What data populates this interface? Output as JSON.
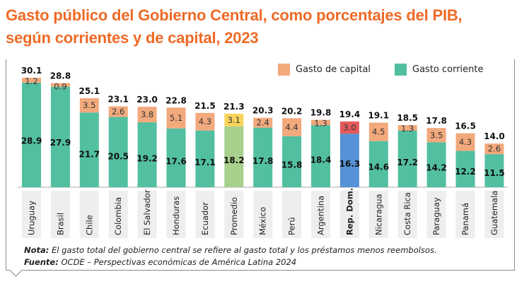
{
  "title_line1": "Gasto público del Gobierno Central, como porcentajes del PIB,",
  "title_line2": "según corrientes y de capital, 2023",
  "chart_data": {
    "type": "bar",
    "stacked": true,
    "categories": [
      "Uruguay",
      "Brasil",
      "Chile",
      "Colombia",
      "El Salvador",
      "Honduras",
      "Ecuador",
      "Promedio",
      "México",
      "Perú",
      "Argentina",
      "Rep. Dom.",
      "Nicaragua",
      "Costa Rica",
      "Paraguay",
      "Panamá",
      "Guatemala"
    ],
    "series": [
      {
        "name": "Gasto corriente",
        "color": "#52bfa0",
        "values": [
          28.9,
          27.9,
          21.7,
          20.5,
          19.2,
          17.6,
          17.1,
          18.2,
          17.8,
          15.8,
          18.4,
          16.3,
          14.6,
          17.2,
          14.2,
          12.2,
          11.5
        ]
      },
      {
        "name": "Gasto de capital",
        "color": "#f2a97c",
        "values": [
          1.2,
          0.9,
          3.5,
          2.6,
          3.8,
          5.1,
          4.3,
          3.1,
          2.4,
          4.4,
          1.3,
          3.0,
          4.5,
          1.3,
          3.5,
          4.3,
          2.6
        ]
      }
    ],
    "totals": [
      "30.1",
      "28.8",
      "25.1",
      "23.1",
      "23.0",
      "22.8",
      "21.5",
      "21.3",
      "20.3",
      "20.2",
      "19.8",
      "19.4",
      "19.1",
      "18.5",
      "17.8",
      "16.5",
      "14.0"
    ],
    "highlight": {
      "Promedio": {
        "current": "#a8d08d",
        "capital": "#f9d45c"
      },
      "Rep. Dom.": {
        "current": "#5592d6",
        "capital": "#e55a5a"
      }
    },
    "legend_position": "top-right",
    "grid": false
  },
  "note_label": "Nota:",
  "note_text": " El gasto total del gobierno central se refiere al gasto total y los préstamos menos reembolsos.",
  "source_label": "Fuente:",
  "source_text": " OCDE – Perspectivas económicas de América Latina 2024"
}
